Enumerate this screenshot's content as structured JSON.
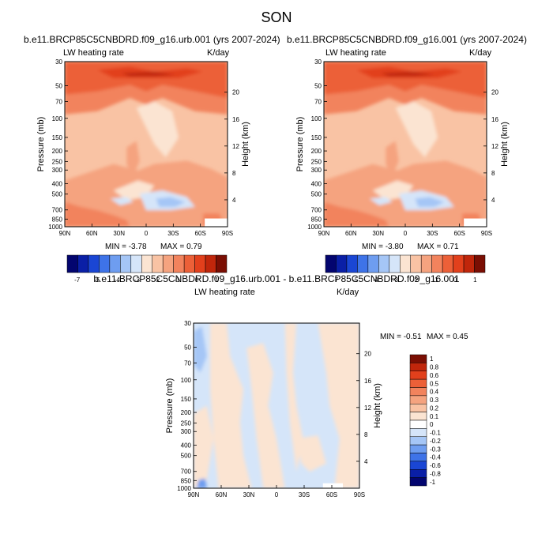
{
  "page_title": "SON",
  "chart_data": [
    {
      "type": "heatmap",
      "title": "b.e11.BRCP85C5CNBDRD.f09_g16.urb.001 (yrs 2007-2024)",
      "subtitle_left": "LW heating rate",
      "subtitle_right": "K/day",
      "ylabel": "Pressure (mb)",
      "ylabel_right": "Height (km)",
      "x_ticks": [
        "90N",
        "60N",
        "30N",
        "0",
        "30S",
        "60S",
        "90S"
      ],
      "y_ticks": [
        "30",
        "50",
        "70",
        "100",
        "150",
        "200",
        "250",
        "300",
        "400",
        "500",
        "700",
        "850",
        "1000"
      ],
      "y_ticks_right": [
        "20",
        "16",
        "12",
        "8",
        "4"
      ],
      "min_label": "MIN = -3.78",
      "max_label": "MAX = 0.79",
      "colorbar_labels": [
        "-7",
        "-5",
        "-4",
        "-3",
        "-2",
        "-1",
        "0",
        "1"
      ]
    },
    {
      "type": "heatmap",
      "title": "b.e11.BRCP85C5CNBDRD.f09_g16.001 (yrs 2007-2024)",
      "subtitle_left": "LW heating rate",
      "subtitle_right": "K/day",
      "ylabel": "Pressure (mb)",
      "ylabel_right": "Height (km)",
      "x_ticks": [
        "90N",
        "60N",
        "30N",
        "0",
        "30S",
        "60S",
        "90S"
      ],
      "y_ticks": [
        "30",
        "50",
        "70",
        "100",
        "150",
        "200",
        "250",
        "300",
        "400",
        "500",
        "700",
        "850",
        "1000"
      ],
      "y_ticks_right": [
        "20",
        "16",
        "12",
        "8",
        "4"
      ],
      "min_label": "MIN = -3.80",
      "max_label": "MAX = 0.71",
      "colorbar_labels": [
        "-7",
        "-5",
        "-4",
        "-3",
        "-2",
        "-1",
        "0",
        "1"
      ]
    },
    {
      "type": "heatmap",
      "title": "b.e11.BRCP85C5CNBDRD.f09_g16.urb.001 - b.e11.BRCP85C5CNBDRD.f09_g16.001",
      "subtitle_left": "LW heating rate",
      "subtitle_right": "K/day",
      "ylabel": "Pressure (mb)",
      "ylabel_right": "Height (km)",
      "x_ticks": [
        "90N",
        "60N",
        "30N",
        "0",
        "30S",
        "60S",
        "90S"
      ],
      "y_ticks": [
        "30",
        "50",
        "70",
        "100",
        "150",
        "200",
        "250",
        "300",
        "400",
        "500",
        "700",
        "850",
        "1000"
      ],
      "y_ticks_right": [
        "20",
        "16",
        "12",
        "8",
        "4"
      ],
      "min_label": "MIN = -0.51",
      "max_label": "MAX = 0.45",
      "colorbar_labels": [
        "1",
        "0.8",
        "0.6",
        "0.5",
        "0.4",
        "0.3",
        "0.2",
        "0.1",
        "0",
        "-0.1",
        "-0.2",
        "-0.3",
        "-0.4",
        "-0.6",
        "-0.8",
        "-1"
      ]
    }
  ],
  "colors": {
    "top_scale": [
      "#03056f",
      "#0a1fa6",
      "#1a46d4",
      "#3e73e8",
      "#6e9df0",
      "#a5c6f6",
      "#d5e5f9",
      "#fbe4d2",
      "#f9c3a4",
      "#f5a37f",
      "#f2835d",
      "#ec6038",
      "#e2401c",
      "#c0260b",
      "#7a0e03"
    ],
    "diff_scale": [
      "#7a0e03",
      "#c0260b",
      "#e2401c",
      "#ec6038",
      "#f2835d",
      "#f5a37f",
      "#f9c3a4",
      "#fbe4d2",
      "#ffffff",
      "#d5e5f9",
      "#a5c6f6",
      "#6e9df0",
      "#3e73e8",
      "#1a46d4",
      "#0a1fa6",
      "#03056f"
    ]
  }
}
